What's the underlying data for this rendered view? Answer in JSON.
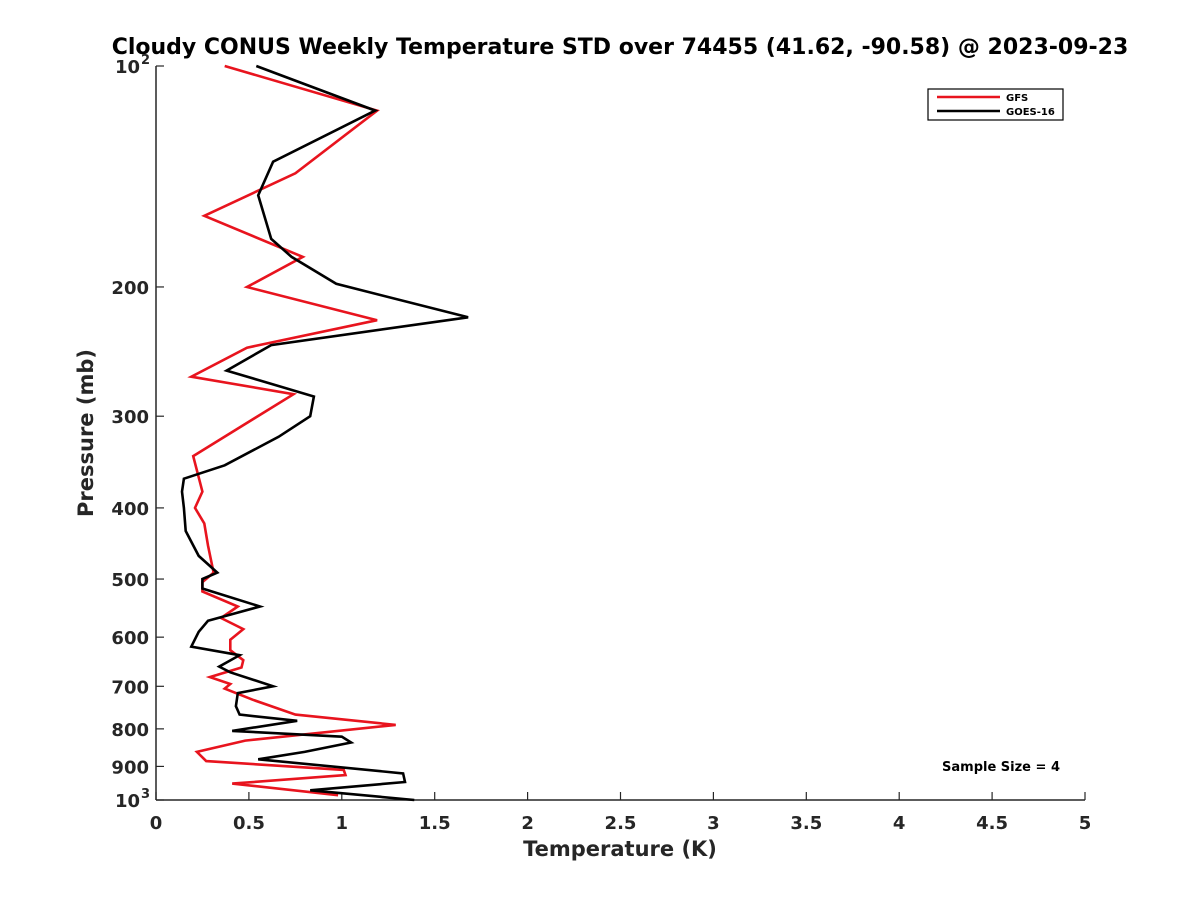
{
  "chart_data": {
    "type": "line",
    "title": "Cloudy CONUS Weekly Temperature STD over 74455 (41.62, -90.58) @ 2023-09-23",
    "xlabel": "Temperature (K)",
    "ylabel": "Pressure (mb)",
    "xlim": [
      0,
      5
    ],
    "ylim": [
      100,
      1000
    ],
    "y_scale": "log",
    "y_reversed": true,
    "grid": false,
    "legend_position": "top-right",
    "x_ticks": [
      {
        "value": 0,
        "label": "0"
      },
      {
        "value": 0.5,
        "label": "0.5"
      },
      {
        "value": 1,
        "label": "1"
      },
      {
        "value": 1.5,
        "label": "1.5"
      },
      {
        "value": 2,
        "label": "2"
      },
      {
        "value": 2.5,
        "label": "2.5"
      },
      {
        "value": 3,
        "label": "3"
      },
      {
        "value": 3.5,
        "label": "3.5"
      },
      {
        "value": 4,
        "label": "4"
      },
      {
        "value": 4.5,
        "label": "4.5"
      },
      {
        "value": 5,
        "label": "5"
      }
    ],
    "y_ticks": [
      {
        "value": 100,
        "label": "10",
        "sup": "2"
      },
      {
        "value": 200,
        "label": "200"
      },
      {
        "value": 300,
        "label": "300"
      },
      {
        "value": 400,
        "label": "400"
      },
      {
        "value": 500,
        "label": "500"
      },
      {
        "value": 600,
        "label": "600"
      },
      {
        "value": 700,
        "label": "700"
      },
      {
        "value": 800,
        "label": "800"
      },
      {
        "value": 900,
        "label": "900"
      },
      {
        "value": 1000,
        "label": "10",
        "sup": "3"
      }
    ],
    "annotation": "Sample Size = 4",
    "series": [
      {
        "name": "GFS",
        "color": "#e8141e",
        "x": [
          0.37,
          1.19,
          0.75,
          0.26,
          0.79,
          0.49,
          1.19,
          0.49,
          0.19,
          0.74,
          0.2,
          0.25,
          0.21,
          0.26,
          0.28,
          0.31,
          0.25,
          0.25,
          0.44,
          0.35,
          0.47,
          0.4,
          0.4,
          0.47,
          0.46,
          0.29,
          0.4,
          0.37,
          0.52,
          0.75,
          1.29,
          0.48,
          0.22,
          0.27,
          1.01,
          1.02,
          0.41,
          0.98
        ],
        "y": [
          100,
          115,
          140,
          160,
          182,
          200,
          222,
          242,
          265,
          280,
          340,
          380,
          400,
          420,
          450,
          490,
          505,
          520,
          545,
          565,
          585,
          605,
          625,
          645,
          660,
          680,
          695,
          705,
          730,
          765,
          790,
          830,
          860,
          885,
          910,
          925,
          950,
          985
        ]
      },
      {
        "name": "GOES-16",
        "color": "#000000",
        "x": [
          0.54,
          1.18,
          0.63,
          0.55,
          0.62,
          0.73,
          0.97,
          1.68,
          0.62,
          0.38,
          0.85,
          0.83,
          0.66,
          0.37,
          0.15,
          0.14,
          0.15,
          0.16,
          0.23,
          0.33,
          0.25,
          0.25,
          0.56,
          0.28,
          0.23,
          0.19,
          0.45,
          0.34,
          0.4,
          0.63,
          0.44,
          0.43,
          0.45,
          0.76,
          0.41,
          1.0,
          1.05,
          0.8,
          0.55,
          1.33,
          1.34,
          0.83,
          1.39
        ],
        "y": [
          100,
          115,
          135,
          150,
          172,
          182,
          198,
          220,
          240,
          260,
          282,
          300,
          320,
          350,
          365,
          380,
          400,
          430,
          465,
          490,
          500,
          515,
          545,
          570,
          590,
          618,
          635,
          658,
          670,
          700,
          715,
          745,
          765,
          780,
          805,
          820,
          835,
          860,
          880,
          920,
          945,
          970,
          1000
        ]
      }
    ]
  }
}
